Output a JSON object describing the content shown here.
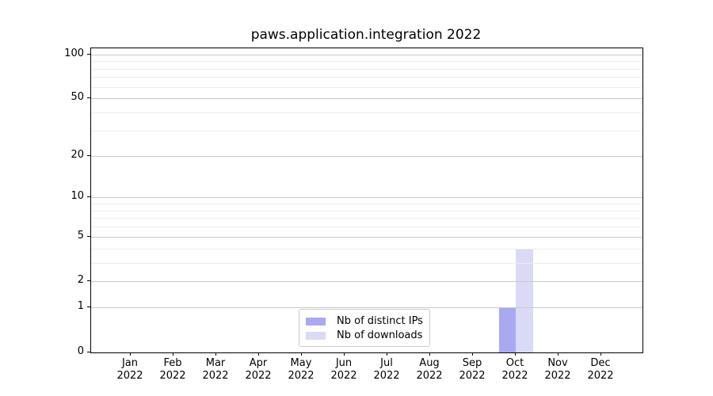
{
  "chart_data": {
    "type": "bar",
    "title": "paws.application.integration 2022",
    "x_categories": [
      {
        "month": "Jan",
        "year": "2022"
      },
      {
        "month": "Feb",
        "year": "2022"
      },
      {
        "month": "Mar",
        "year": "2022"
      },
      {
        "month": "Apr",
        "year": "2022"
      },
      {
        "month": "May",
        "year": "2022"
      },
      {
        "month": "Jun",
        "year": "2022"
      },
      {
        "month": "Jul",
        "year": "2022"
      },
      {
        "month": "Aug",
        "year": "2022"
      },
      {
        "month": "Sep",
        "year": "2022"
      },
      {
        "month": "Oct",
        "year": "2022"
      },
      {
        "month": "Nov",
        "year": "2022"
      },
      {
        "month": "Dec",
        "year": "2022"
      }
    ],
    "series": [
      {
        "name": "Nb of distinct IPs",
        "color": "#a9a9f2",
        "values": [
          0,
          0,
          0,
          0,
          0,
          0,
          0,
          0,
          0,
          1,
          0,
          0
        ]
      },
      {
        "name": "Nb of downloads",
        "color": "#dadaf7",
        "values": [
          0,
          0,
          0,
          0,
          0,
          0,
          0,
          0,
          0,
          4,
          0,
          0
        ]
      }
    ],
    "yscale": "log1p",
    "ylim": [
      0,
      110
    ],
    "yticks_major": [
      0,
      1,
      2,
      5,
      10,
      20,
      50,
      100
    ],
    "yticks_minor": [
      3,
      4,
      6,
      7,
      8,
      9,
      30,
      40,
      60,
      70,
      80,
      90
    ],
    "grid": {
      "major_color": "#c9c9c9",
      "minor_color": "#ededed",
      "on": true
    },
    "legend": {
      "position": "lower center"
    },
    "spine_color": "#000000",
    "background": "#ffffff"
  }
}
